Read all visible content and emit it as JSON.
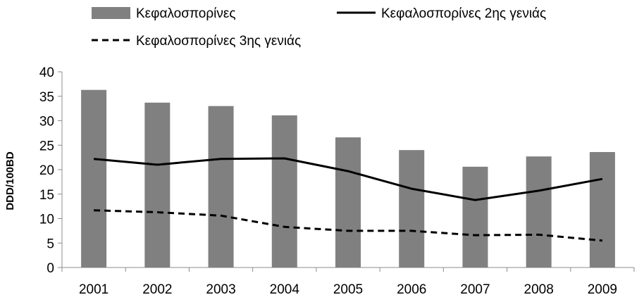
{
  "chart_data": {
    "type": "bar",
    "categories": [
      "2001",
      "2002",
      "2003",
      "2004",
      "2005",
      "2006",
      "2007",
      "2008",
      "2009"
    ],
    "series": [
      {
        "name": "Κεφαλοσπορίνες",
        "type": "bar",
        "color": "#808080",
        "values": [
          36.3,
          33.7,
          33.0,
          31.1,
          26.6,
          24.0,
          20.6,
          22.7,
          23.6
        ]
      },
      {
        "name": "Κεφαλοσπορίνες 2ης γενιάς",
        "type": "line",
        "style": "solid",
        "color": "#000000",
        "values": [
          22.2,
          21.0,
          22.2,
          22.3,
          19.7,
          16.1,
          13.8,
          15.7,
          18.1
        ]
      },
      {
        "name": "Κεφαλοσπορίνες 3ης γενιάς",
        "type": "line",
        "style": "dashed",
        "color": "#000000",
        "values": [
          11.7,
          11.3,
          10.6,
          8.3,
          7.5,
          7.5,
          6.6,
          6.7,
          5.5
        ]
      }
    ],
    "title": "",
    "xlabel": "",
    "ylabel": "DDD/100BD",
    "ylim": [
      0,
      40
    ],
    "yticks": [
      "0",
      "5",
      "10",
      "15",
      "20",
      "25",
      "30",
      "35",
      "40"
    ],
    "grid": false,
    "legend_position": "top"
  }
}
